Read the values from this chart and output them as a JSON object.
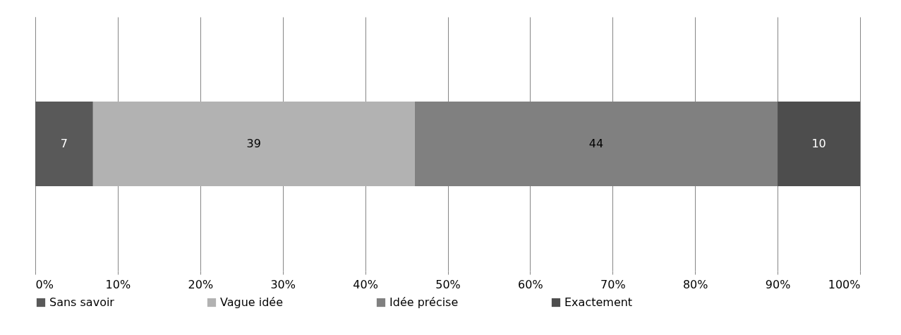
{
  "chart_data": {
    "type": "bar",
    "orientation": "horizontal",
    "stacked": true,
    "categories": [
      null
    ],
    "series": [
      {
        "name": "Sans savoir",
        "color": "#595959",
        "values": [
          7
        ]
      },
      {
        "name": "Vague idée",
        "color": "#b2b2b2",
        "values": [
          39
        ]
      },
      {
        "name": "Idée précise",
        "color": "#808080",
        "values": [
          44
        ]
      },
      {
        "name": "Exactement",
        "color": "#4d4d4d",
        "values": [
          10
        ]
      }
    ],
    "xlim": [
      0,
      100
    ],
    "xticks": [
      {
        "value": 0,
        "label": "0%"
      },
      {
        "value": 10,
        "label": "10%"
      },
      {
        "value": 20,
        "label": "20%"
      },
      {
        "value": 30,
        "label": "30%"
      },
      {
        "value": 40,
        "label": "40%"
      },
      {
        "value": 50,
        "label": "50%"
      },
      {
        "value": 60,
        "label": "60%"
      },
      {
        "value": 70,
        "label": "70%"
      },
      {
        "value": 80,
        "label": "80%"
      },
      {
        "value": 90,
        "label": "90%"
      },
      {
        "value": 100,
        "label": "100%"
      }
    ],
    "grid": "x",
    "legend": "bottom",
    "data_labels": true
  }
}
